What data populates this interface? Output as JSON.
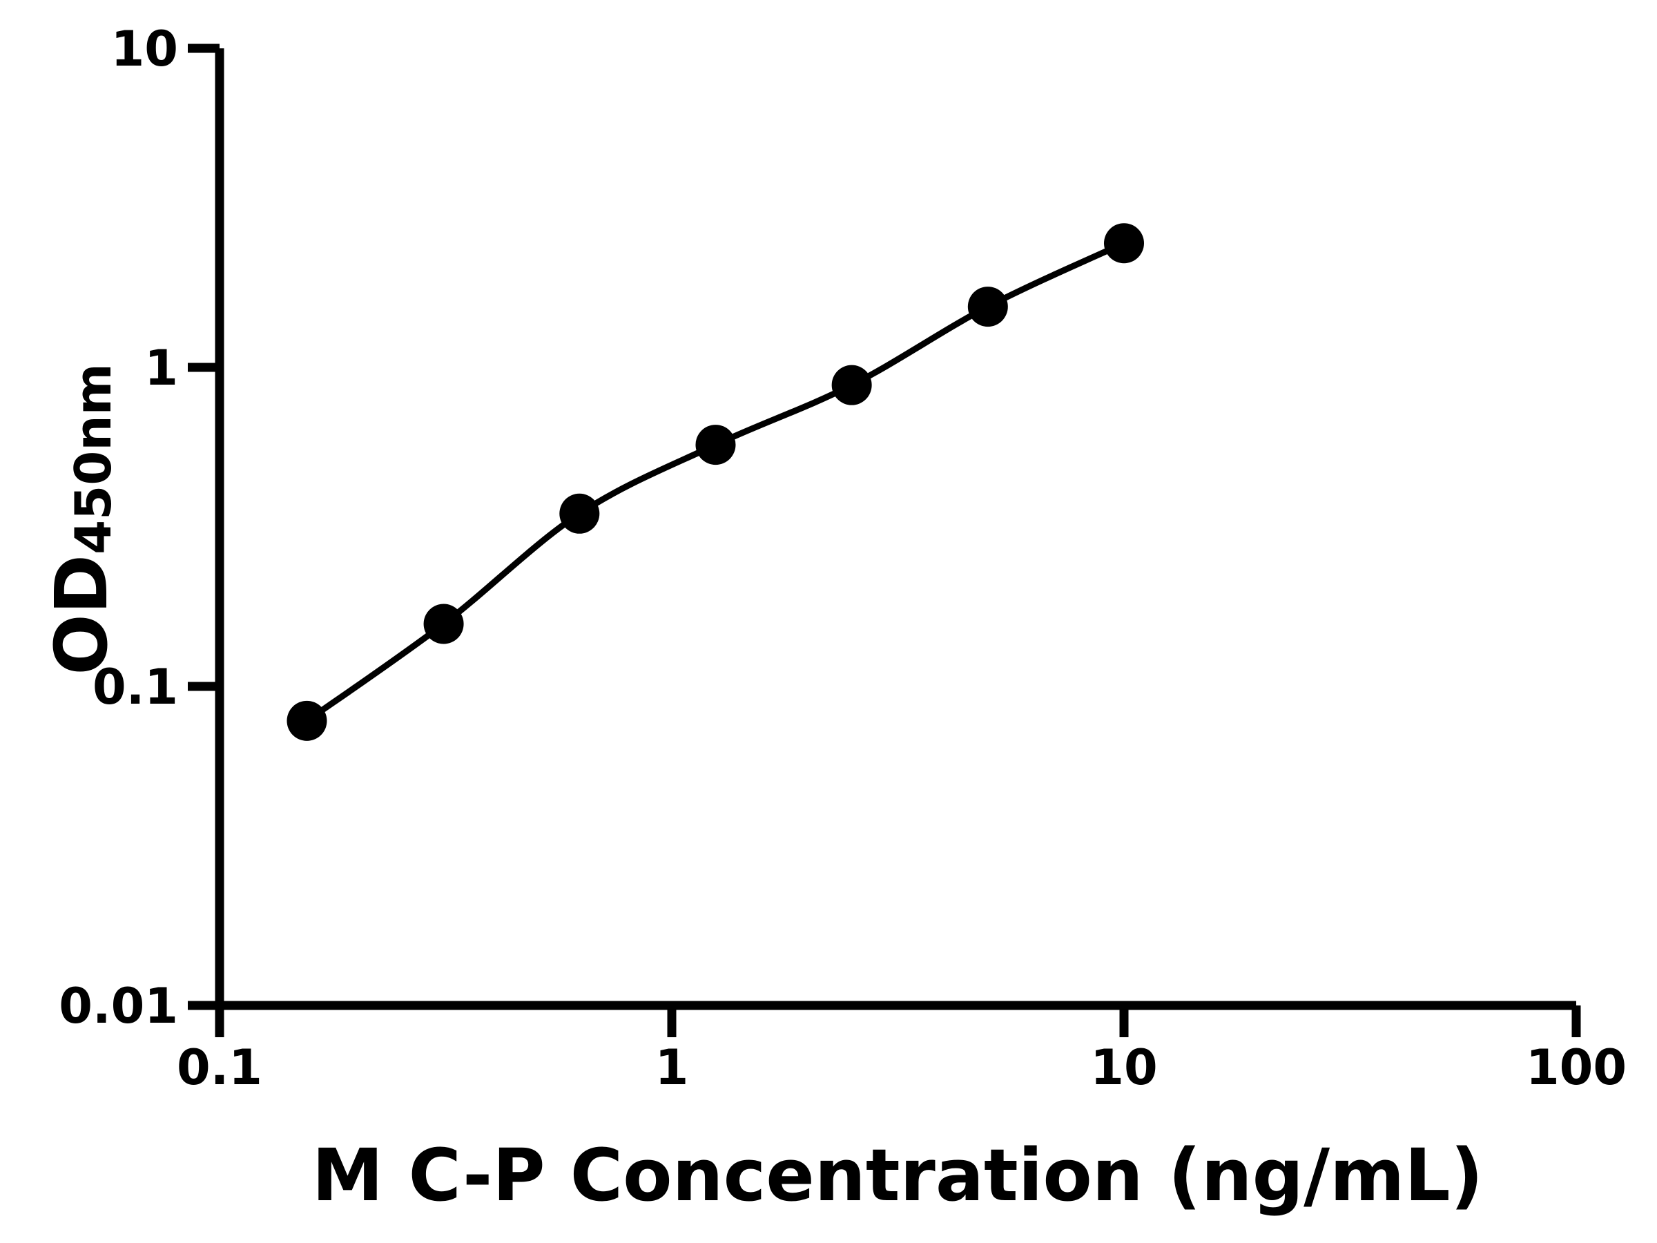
{
  "page": {
    "background": "#ffffff",
    "ink_color": "#000000"
  },
  "chart_data": {
    "type": "scatter",
    "title": "",
    "xlabel": "M C-P Concentration (ng/mL)",
    "ylabel": {
      "main": "OD",
      "sub": "450nm"
    },
    "x_scale": "log",
    "y_scale": "log",
    "xlim": [
      0.1,
      100
    ],
    "ylim": [
      0.01,
      10
    ],
    "x_ticks": [
      {
        "value": 0.1,
        "label": "0.1"
      },
      {
        "value": 1,
        "label": "1"
      },
      {
        "value": 10,
        "label": "10"
      },
      {
        "value": 100,
        "label": "100"
      }
    ],
    "y_ticks": [
      {
        "value": 0.01,
        "label": "0.01"
      },
      {
        "value": 0.1,
        "label": "0.1"
      },
      {
        "value": 1,
        "label": "1"
      },
      {
        "value": 10,
        "label": "10"
      }
    ],
    "grid": false,
    "legend": "none",
    "series": [
      {
        "marker": "filled-circle",
        "line": "smooth",
        "color": "#000000",
        "points": [
          {
            "x": 0.156,
            "y": 0.078
          },
          {
            "x": 0.313,
            "y": 0.157
          },
          {
            "x": 0.625,
            "y": 0.348
          },
          {
            "x": 1.25,
            "y": 0.572
          },
          {
            "x": 2.5,
            "y": 0.88
          },
          {
            "x": 5,
            "y": 1.55
          },
          {
            "x": 10,
            "y": 2.45
          }
        ]
      }
    ]
  }
}
